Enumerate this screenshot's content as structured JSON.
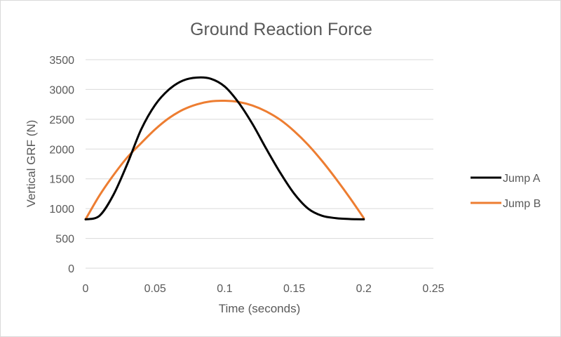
{
  "chart_data": {
    "type": "line",
    "title": "Ground Reaction Force",
    "xlabel": "Time (seconds)",
    "ylabel": "Vertical GRF (N)",
    "xlim": [
      0,
      0.25
    ],
    "ylim": [
      0,
      3500
    ],
    "x_ticks": [
      "0",
      "0.05",
      "0.1",
      "0.15",
      "0.2",
      "0.25"
    ],
    "y_ticks": [
      "0",
      "500",
      "1000",
      "1500",
      "2000",
      "2500",
      "3000",
      "3500"
    ],
    "grid": "horizontal",
    "legend_position": "right",
    "series": [
      {
        "name": "Jump A",
        "color": "#000000",
        "x": [
          0,
          0.01,
          0.02,
          0.03,
          0.04,
          0.05,
          0.06,
          0.07,
          0.08,
          0.09,
          0.1,
          0.11,
          0.12,
          0.13,
          0.14,
          0.15,
          0.16,
          0.17,
          0.18,
          0.19,
          0.2
        ],
        "y": [
          820,
          880,
          1230,
          1750,
          2330,
          2740,
          3000,
          3150,
          3200,
          3180,
          3050,
          2780,
          2420,
          2000,
          1600,
          1250,
          1000,
          880,
          840,
          825,
          820
        ]
      },
      {
        "name": "Jump B",
        "color": "#ED7D31",
        "x": [
          0,
          0.01,
          0.02,
          0.03,
          0.04,
          0.05,
          0.06,
          0.07,
          0.08,
          0.09,
          0.1,
          0.11,
          0.12,
          0.13,
          0.14,
          0.15,
          0.16,
          0.17,
          0.18,
          0.19,
          0.2
        ],
        "y": [
          820,
          1220,
          1560,
          1860,
          2100,
          2330,
          2520,
          2660,
          2750,
          2800,
          2810,
          2790,
          2730,
          2630,
          2490,
          2300,
          2070,
          1800,
          1500,
          1180,
          840
        ]
      }
    ]
  }
}
